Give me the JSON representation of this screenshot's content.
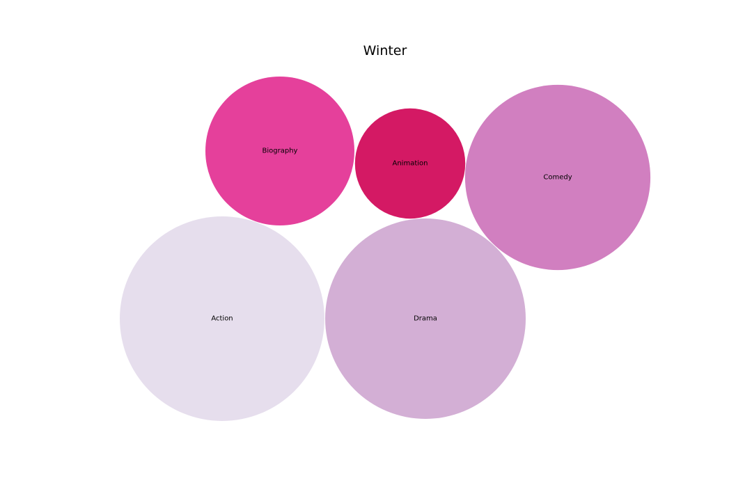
{
  "chart_data": {
    "type": "bubble",
    "title": "Winter",
    "bubbles": [
      {
        "label": "Action",
        "value": 100,
        "color": "#e6deed"
      },
      {
        "label": "Drama",
        "value": 96,
        "color": "#d3afd5"
      },
      {
        "label": "Comedy",
        "value": 82,
        "color": "#d17fc0"
      },
      {
        "label": "Biography",
        "value": 53,
        "color": "#e5409b"
      },
      {
        "label": "Animation",
        "value": 29,
        "color": "#d41964"
      }
    ]
  }
}
